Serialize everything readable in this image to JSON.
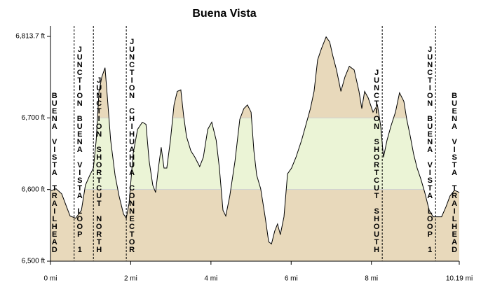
{
  "chart_data": {
    "type": "area",
    "title": "Buena Vista",
    "x": [
      0,
      0.14,
      0.28,
      0.4,
      0.49,
      0.63,
      0.77,
      0.87,
      0.98,
      1.07,
      1.14,
      1.21,
      1.28,
      1.36,
      1.42,
      1.5,
      1.61,
      1.71,
      1.82,
      1.89,
      1.96,
      2.06,
      2.17,
      2.29,
      2.38,
      2.46,
      2.55,
      2.62,
      2.69,
      2.76,
      2.83,
      2.9,
      2.99,
      3.08,
      3.16,
      3.25,
      3.32,
      3.39,
      3.5,
      3.6,
      3.72,
      3.81,
      3.92,
      4.02,
      4.13,
      4.21,
      4.3,
      4.37,
      4.47,
      4.6,
      4.72,
      4.82,
      4.91,
      5.0,
      5.07,
      5.14,
      5.24,
      5.35,
      5.44,
      5.51,
      5.59,
      5.66,
      5.73,
      5.82,
      5.91,
      6.01,
      6.12,
      6.26,
      6.36,
      6.48,
      6.57,
      6.66,
      6.75,
      6.87,
      6.96,
      7.04,
      7.13,
      7.24,
      7.34,
      7.45,
      7.57,
      7.69,
      7.76,
      7.83,
      7.92,
      8.04,
      8.15,
      8.23,
      8.3,
      8.39,
      8.49,
      8.6,
      8.7,
      8.81,
      8.88,
      8.97,
      9.05,
      9.14,
      9.23,
      9.33,
      9.44,
      9.54,
      9.65,
      9.75,
      9.86,
      9.96,
      10.07,
      10.19
    ],
    "values": [
      6598,
      6601,
      6594,
      6576,
      6563,
      6560,
      6571,
      6606,
      6620,
      6630,
      6669,
      6737,
      6757,
      6770,
      6728,
      6669,
      6620,
      6591,
      6566,
      6560,
      6581,
      6650,
      6684,
      6694,
      6691,
      6640,
      6606,
      6596,
      6630,
      6659,
      6630,
      6630,
      6669,
      6718,
      6737,
      6739,
      6703,
      6674,
      6654,
      6645,
      6632,
      6645,
      6684,
      6694,
      6669,
      6630,
      6571,
      6563,
      6591,
      6640,
      6698,
      6713,
      6718,
      6708,
      6654,
      6620,
      6601,
      6562,
      6527,
      6524,
      6542,
      6552,
      6537,
      6562,
      6622,
      6630,
      6645,
      6669,
      6689,
      6713,
      6737,
      6781,
      6796,
      6813,
      6806,
      6786,
      6767,
      6737,
      6757,
      6772,
      6767,
      6737,
      6713,
      6737,
      6728,
      6708,
      6718,
      6689,
      6645,
      6669,
      6689,
      6708,
      6735,
      6723,
      6698,
      6674,
      6650,
      6630,
      6615,
      6596,
      6571,
      6562,
      6562,
      6562,
      6576,
      6591,
      6599,
      6596
    ],
    "color": "#000000",
    "band_colors": [
      "#e8d9bb",
      "#ebf4d6",
      "#e8d9bb"
    ],
    "xlim": [
      0,
      10.19
    ],
    "ylim": [
      6500,
      6813.7
    ],
    "xticks": [
      {
        "value": 0,
        "label": "0 mi"
      },
      {
        "value": 2,
        "label": "2 mi"
      },
      {
        "value": 4,
        "label": "4 mi"
      },
      {
        "value": 6,
        "label": "6 mi"
      },
      {
        "value": 8,
        "label": "8 mi"
      },
      {
        "value": 10.19,
        "label": "10.19 mi"
      }
    ],
    "yticks": [
      {
        "value": 6500,
        "label": "6,500 ft"
      },
      {
        "value": 6600,
        "label": "6,600 ft"
      },
      {
        "value": 6700,
        "label": "6,700 ft"
      },
      {
        "value": 6813.7,
        "label": "6,813.7 ft"
      }
    ],
    "markers": [
      {
        "label": "BUENA VISTA TRAILHEAD",
        "x": 0.1,
        "dashed": false
      },
      {
        "label": "JUNCTION BUENA VISTA LOOP 1",
        "x": 0.59,
        "dashed": true
      },
      {
        "label": "JUNCTION SHORTCUT NORTH",
        "x": 1.07,
        "dashed": true
      },
      {
        "label": "JUNCTION CHIHUAHUA CONNECTOR",
        "x": 1.89,
        "dashed": true
      },
      {
        "label": "JUNCTION SHORTCUT SHOUTH",
        "x": 8.27,
        "dashed": true
      },
      {
        "label": "JUNCTION BUENA VISTA LOOP 1",
        "x": 9.6,
        "dashed": true
      },
      {
        "label": "BUENA VISTA TRAILHEAD",
        "x": 10.07,
        "dashed": false
      }
    ]
  }
}
